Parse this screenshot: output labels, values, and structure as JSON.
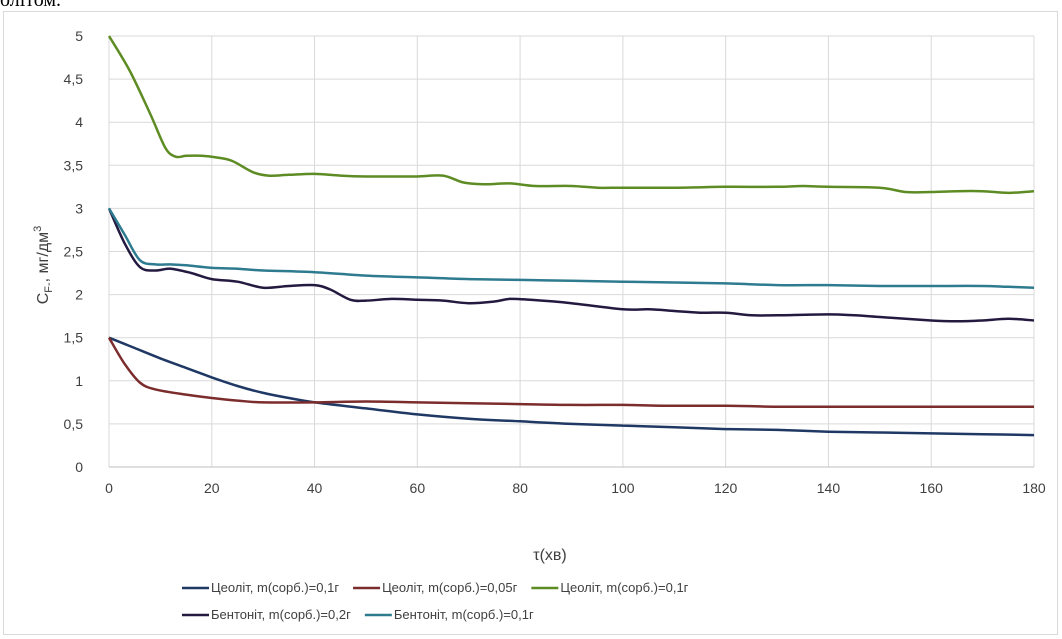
{
  "caption": "олітом.",
  "chart_data": {
    "type": "line",
    "title": "",
    "xlabel": "τ(хв)",
    "ylabel_main": "C",
    "ylabel_sub": "F-",
    "ylabel_rest": ", мг/дм",
    "ylabel_sup": "3",
    "xlim": [
      0,
      180
    ],
    "ylim": [
      0,
      5
    ],
    "x_ticks": [
      0,
      20,
      40,
      60,
      80,
      100,
      120,
      140,
      160,
      180
    ],
    "y_ticks": [
      "0",
      "0,5",
      "1",
      "1,5",
      "2",
      "2,5",
      "3",
      "3,5",
      "4",
      "4,5",
      "5"
    ],
    "grid": true,
    "legend_position": "bottom",
    "series": [
      {
        "name": "Цеоліт, m(сорб.)=0,1г",
        "color": "#1f3864",
        "points": [
          [
            0,
            1.5
          ],
          [
            5,
            1.38
          ],
          [
            10,
            1.26
          ],
          [
            15,
            1.15
          ],
          [
            20,
            1.04
          ],
          [
            25,
            0.94
          ],
          [
            30,
            0.86
          ],
          [
            35,
            0.8
          ],
          [
            40,
            0.75
          ],
          [
            50,
            0.68
          ],
          [
            60,
            0.61
          ],
          [
            70,
            0.56
          ],
          [
            80,
            0.53
          ],
          [
            90,
            0.5
          ],
          [
            100,
            0.48
          ],
          [
            110,
            0.46
          ],
          [
            120,
            0.44
          ],
          [
            130,
            0.43
          ],
          [
            140,
            0.41
          ],
          [
            150,
            0.4
          ],
          [
            160,
            0.39
          ],
          [
            170,
            0.38
          ],
          [
            180,
            0.37
          ]
        ]
      },
      {
        "name": "Цеоліт, m(сорб.)=0,05г",
        "color": "#7b2c2c",
        "points": [
          [
            0,
            1.5
          ],
          [
            3,
            1.2
          ],
          [
            6,
            0.98
          ],
          [
            9,
            0.9
          ],
          [
            15,
            0.84
          ],
          [
            20,
            0.8
          ],
          [
            25,
            0.77
          ],
          [
            30,
            0.75
          ],
          [
            40,
            0.75
          ],
          [
            50,
            0.76
          ],
          [
            60,
            0.75
          ],
          [
            70,
            0.74
          ],
          [
            80,
            0.73
          ],
          [
            90,
            0.72
          ],
          [
            100,
            0.72
          ],
          [
            110,
            0.71
          ],
          [
            120,
            0.71
          ],
          [
            130,
            0.7
          ],
          [
            140,
            0.7
          ],
          [
            150,
            0.7
          ],
          [
            160,
            0.7
          ],
          [
            170,
            0.7
          ],
          [
            180,
            0.7
          ]
        ]
      },
      {
        "name": "Цеоліт, m(сорб.)=0,1г",
        "color": "#5e8c24",
        "points": [
          [
            0,
            5
          ],
          [
            4,
            4.6
          ],
          [
            8,
            4.1
          ],
          [
            11,
            3.7
          ],
          [
            13,
            3.6
          ],
          [
            15,
            3.61
          ],
          [
            18,
            3.61
          ],
          [
            21,
            3.59
          ],
          [
            24,
            3.55
          ],
          [
            28,
            3.42
          ],
          [
            31,
            3.38
          ],
          [
            35,
            3.39
          ],
          [
            40,
            3.4
          ],
          [
            45,
            3.38
          ],
          [
            50,
            3.37
          ],
          [
            55,
            3.37
          ],
          [
            60,
            3.37
          ],
          [
            65,
            3.38
          ],
          [
            69,
            3.3
          ],
          [
            73,
            3.28
          ],
          [
            78,
            3.29
          ],
          [
            83,
            3.26
          ],
          [
            90,
            3.26
          ],
          [
            95,
            3.24
          ],
          [
            100,
            3.24
          ],
          [
            110,
            3.24
          ],
          [
            120,
            3.25
          ],
          [
            130,
            3.25
          ],
          [
            135,
            3.26
          ],
          [
            140,
            3.25
          ],
          [
            150,
            3.24
          ],
          [
            155,
            3.19
          ],
          [
            160,
            3.19
          ],
          [
            165,
            3.2
          ],
          [
            170,
            3.2
          ],
          [
            175,
            3.18
          ],
          [
            180,
            3.2
          ]
        ]
      },
      {
        "name": "Бентоніт, m(сорб.)=0,2г",
        "color": "#241a40",
        "points": [
          [
            0,
            3
          ],
          [
            3,
            2.6
          ],
          [
            6,
            2.32
          ],
          [
            9,
            2.28
          ],
          [
            12,
            2.3
          ],
          [
            16,
            2.25
          ],
          [
            20,
            2.18
          ],
          [
            25,
            2.15
          ],
          [
            30,
            2.08
          ],
          [
            35,
            2.1
          ],
          [
            40,
            2.11
          ],
          [
            43,
            2.06
          ],
          [
            47,
            1.94
          ],
          [
            50,
            1.93
          ],
          [
            55,
            1.95
          ],
          [
            60,
            1.94
          ],
          [
            65,
            1.93
          ],
          [
            70,
            1.9
          ],
          [
            75,
            1.92
          ],
          [
            78,
            1.95
          ],
          [
            82,
            1.94
          ],
          [
            90,
            1.9
          ],
          [
            100,
            1.83
          ],
          [
            105,
            1.83
          ],
          [
            110,
            1.81
          ],
          [
            115,
            1.79
          ],
          [
            120,
            1.79
          ],
          [
            125,
            1.76
          ],
          [
            130,
            1.76
          ],
          [
            140,
            1.77
          ],
          [
            145,
            1.76
          ],
          [
            150,
            1.74
          ],
          [
            160,
            1.7
          ],
          [
            165,
            1.69
          ],
          [
            170,
            1.7
          ],
          [
            175,
            1.72
          ],
          [
            180,
            1.7
          ]
        ]
      },
      {
        "name": "Бентоніт, m(сорб.)=0,1г",
        "color": "#2e7b90",
        "points": [
          [
            0,
            3
          ],
          [
            3,
            2.7
          ],
          [
            6,
            2.4
          ],
          [
            9,
            2.35
          ],
          [
            12,
            2.35
          ],
          [
            15,
            2.34
          ],
          [
            20,
            2.31
          ],
          [
            25,
            2.3
          ],
          [
            30,
            2.28
          ],
          [
            40,
            2.26
          ],
          [
            50,
            2.22
          ],
          [
            60,
            2.2
          ],
          [
            70,
            2.18
          ],
          [
            80,
            2.17
          ],
          [
            90,
            2.16
          ],
          [
            100,
            2.15
          ],
          [
            110,
            2.14
          ],
          [
            120,
            2.13
          ],
          [
            130,
            2.11
          ],
          [
            140,
            2.11
          ],
          [
            150,
            2.1
          ],
          [
            160,
            2.1
          ],
          [
            170,
            2.1
          ],
          [
            175,
            2.09
          ],
          [
            180,
            2.08
          ]
        ]
      }
    ]
  }
}
